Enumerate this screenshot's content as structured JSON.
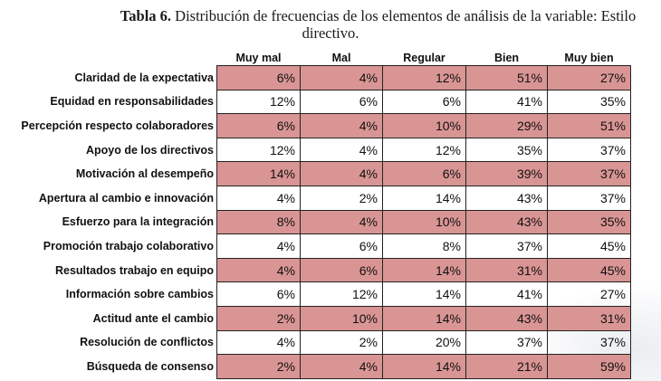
{
  "title": {
    "bold_prefix": "Tabla 6.",
    "line1": " Distribución de frecuencias de los elementos de análisis de la variable: Estilo",
    "line2": "directivo."
  },
  "columns": [
    "Muy mal",
    "Mal",
    "Regular",
    "Bien",
    "Muy bien"
  ],
  "rows": [
    {
      "label": "Claridad de la expectativa",
      "values": [
        "6%",
        "4%",
        "12%",
        "51%",
        "27%"
      ]
    },
    {
      "label": "Equidad en responsabilidades",
      "values": [
        "12%",
        "6%",
        "6%",
        "41%",
        "35%"
      ]
    },
    {
      "label": "Percepción respecto  colaboradores",
      "values": [
        "6%",
        "4%",
        "10%",
        "29%",
        "51%"
      ]
    },
    {
      "label": "Apoyo de los directivos",
      "values": [
        "12%",
        "4%",
        "12%",
        "35%",
        "37%"
      ]
    },
    {
      "label": "Motivación al desempeño",
      "values": [
        "14%",
        "4%",
        "6%",
        "39%",
        "37%"
      ]
    },
    {
      "label": "Apertura al cambio e innovación",
      "values": [
        "4%",
        "2%",
        "14%",
        "43%",
        "37%"
      ]
    },
    {
      "label": "Esfuerzo para la integración",
      "values": [
        "8%",
        "4%",
        "10%",
        "43%",
        "35%"
      ]
    },
    {
      "label": "Promoción trabajo colaborativo",
      "values": [
        "4%",
        "6%",
        "8%",
        "37%",
        "45%"
      ]
    },
    {
      "label": "Resultados trabajo en equipo",
      "values": [
        "4%",
        "6%",
        "14%",
        "31%",
        "45%"
      ]
    },
    {
      "label": "Información sobre cambios",
      "values": [
        "6%",
        "12%",
        "14%",
        "41%",
        "27%"
      ]
    },
    {
      "label": "Actitud ante el cambio",
      "values": [
        "2%",
        "10%",
        "14%",
        "43%",
        "31%"
      ]
    },
    {
      "label": "Resolución de conflictos",
      "values": [
        "4%",
        "2%",
        "20%",
        "37%",
        "37%"
      ]
    },
    {
      "label": "Búsqueda de consenso",
      "values": [
        "2%",
        "4%",
        "14%",
        "21%",
        "59%"
      ]
    }
  ],
  "colors": {
    "shaded_row": "#d99594"
  }
}
